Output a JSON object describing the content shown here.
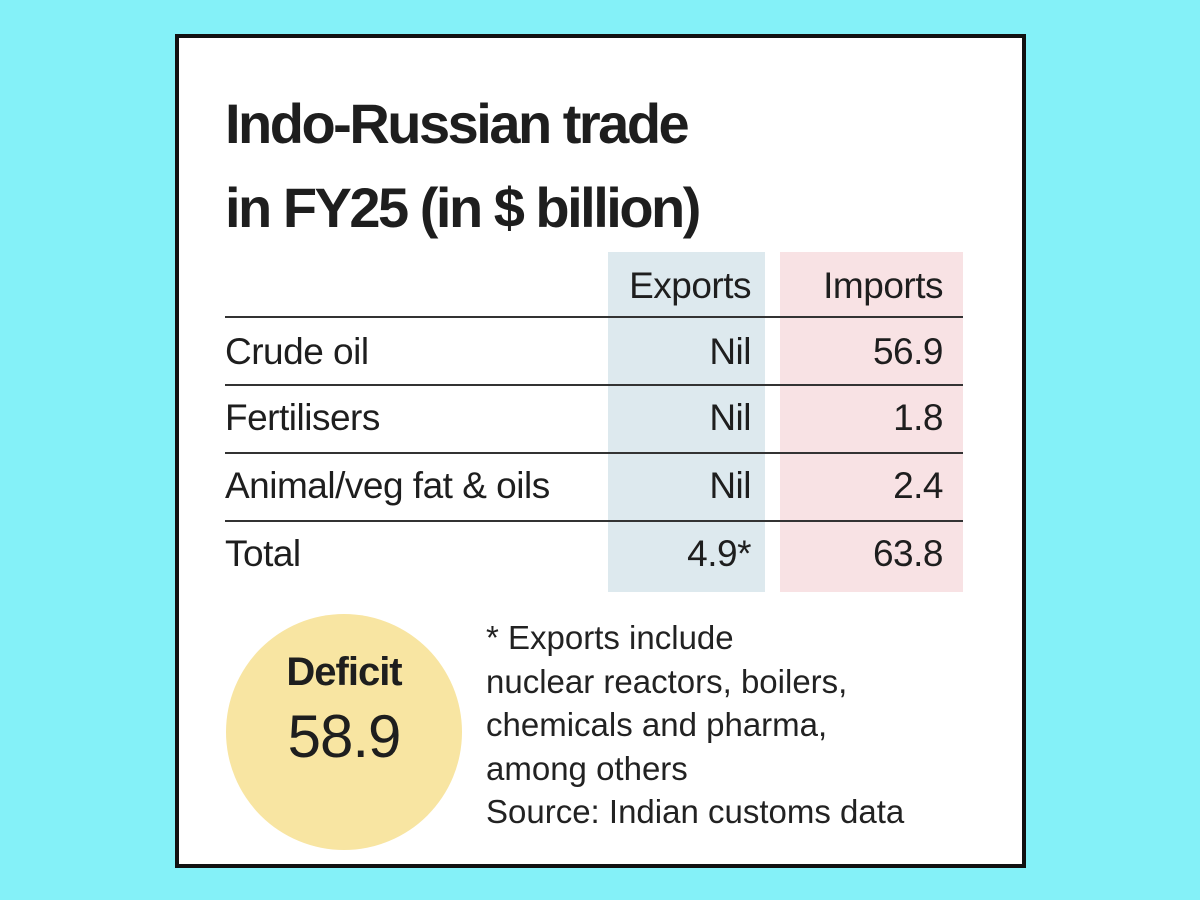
{
  "title": [
    "Indo-Russian trade",
    "in FY25 (in $ billion)"
  ],
  "table": {
    "columns": [
      "Exports",
      "Imports"
    ],
    "rows": [
      [
        "Crude oil",
        "Nil",
        56.9
      ],
      [
        "Fertilisers",
        "Nil",
        1.8
      ],
      [
        "Animal/veg fat & oils",
        "Nil",
        2.4
      ],
      [
        "Total",
        "4.9*",
        63.8
      ]
    ]
  },
  "deficit": {
    "label": "Deficit",
    "value": 58.9
  },
  "note": [
    "* Exports include",
    "nuclear reactors, boilers,",
    "chemicals and pharma,",
    "among others"
  ],
  "source": "Source: Indian customs data"
}
